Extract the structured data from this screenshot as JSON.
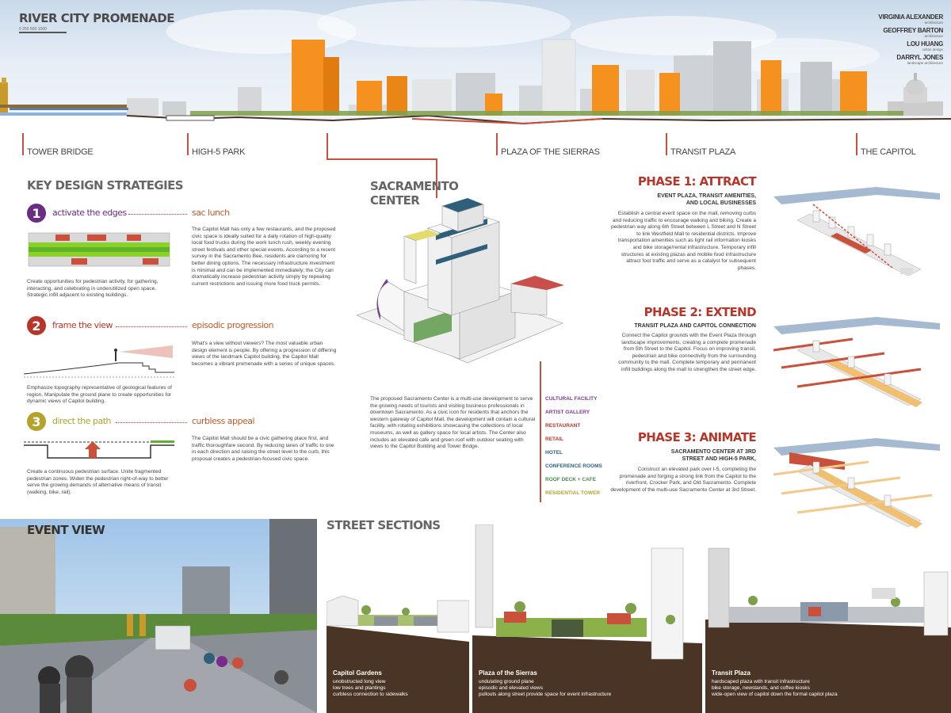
{
  "header": {
    "title": "RIVER CITY PROMENADE",
    "scale_text": "0    250    500          1000"
  },
  "credits": [
    {
      "name": "VIRGINIA ALEXANDER",
      "role": "architecture"
    },
    {
      "name": "GEOFFREY BARTON",
      "role": "architecture"
    },
    {
      "name": "LOU HUANG",
      "role": "urban design"
    },
    {
      "name": "DARRYL JONES",
      "role": "landscape architecture"
    }
  ],
  "locations": [
    "TOWER BRIDGE",
    "HIGH-5 PARK",
    "PLAZA OF THE SIERRAS",
    "TRANSIT PLAZA",
    "THE CAPITOL"
  ],
  "strategies": {
    "heading": "KEY DESIGN STRATEGIES",
    "items": [
      {
        "num": "1",
        "name": "activate the edges",
        "right_title": "sac lunch",
        "left_text": "Create opportunities for pedestrian activity, for gathering, interacting, and celebrating in underutilized open space.  Strategic infill adjacent to existing buildings.",
        "right_text": "The Capitol Mall has only a few restaurants, and the proposed civic space is ideally suited for a daily rotation of high-quality local food trucks during the work lunch rush, weekly evening street festivals and other special events. According to a recent survey in the Sacramento Bee, residents are clamoring for better dining options. The necessary infrastructure investment is minimal and can be implemented immediately; the City can dramatically increase pedestrian activity simply by repealing current restrictions and issuing more food truck permits.",
        "color": "#6b2c83"
      },
      {
        "num": "2",
        "name": "frame the view",
        "right_title": "episodic progression",
        "left_text": "Emphasize topography representative of geological features of region. Manipulate the ground plane to create opportunities for dynamic views of Capitol building.",
        "right_text": "What's a view without viewers? The most valuable urban design element is people. By offering a progression of differing views of the landmark Capitol building, the Capitol Mall becomes a vibrant promenade with a series of unique spaces.",
        "color": "#b8352a"
      },
      {
        "num": "3",
        "name": "direct the path",
        "right_title": "curbless appeal",
        "left_text": "Create a continuous pedestrian surface. Unite fragmented pedestrian zones. Widen the pedestrian right-of-way to better serve the growing demands of alternative means of transit (walking, bike, rail).",
        "right_text": "The Capitol Mall should be a civic gathering place first, and traffic thoroughfare second. By reducing lanes of traffic to one in each direction and raising the street level to the curb, this proposal creates a pedestrian-focused civic space.",
        "color": "#b4a22c"
      }
    ]
  },
  "center": {
    "heading_line1": "SACRAMENTO",
    "heading_line2": "CENTER",
    "description": "The proposed Sacramento Center is a multi-use development to serve the growing needs of tourists and visiting business professionals in downtown Sacramento. As a civic icon for residents that anchors the western gateway of Capitol Mall, the development will contain a cultural facility, with rotating exhibitions showcasing the collections of local museums, as well as gallery space for local artists. The Center also includes an elevated cafe and green roof with outdoor seating with views to the Capitol Building and Tower Bridge.",
    "legend": [
      {
        "label": "CULTURAL FACILITY",
        "color": "#7a3a8c"
      },
      {
        "label": "ARTIST GALLERY",
        "color": "#7a3a8c"
      },
      {
        "label": "RESTAURANT",
        "color": "#b8352a"
      },
      {
        "label": "RETAIL",
        "color": "#b8352a"
      },
      {
        "label": "HOTEL",
        "color": "#2f5f7a"
      },
      {
        "label": "CONFERENCE ROOMS",
        "color": "#2f5f7a"
      },
      {
        "label": "ROOF DECK + CAFE",
        "color": "#4a8a4a"
      },
      {
        "label": "RESIDENTIAL TOWER",
        "color": "#b4a22c"
      }
    ]
  },
  "phases": [
    {
      "title": "PHASE 1: ATTRACT",
      "subtitle_line1": "EVENT PLAZA, TRANSIT AMENITIES,",
      "subtitle_line2": "AND LOCAL BUSINESSES",
      "text": "Establish a central event space on the mall, removing curbs and reducing traffic to encourage walking and biking. Create a pedestrian way along 6th Street between L Street and N Street to link Westfield Mall to residential districts.  Improve transportation amenities such as light rail information kiosks and bike storage/rental infrastructure. Temporary infill structures at existing plazas and mobile food infrastructure attract foot traffic and serve as a catalyst for subsequent phases."
    },
    {
      "title": "PHASE 2: EXTEND",
      "subtitle_line1": "TRANSIT PLAZA AND CAPITOL CONNECTION",
      "subtitle_line2": "",
      "text": "Connect the Capitol grounds with the Event Plaza through landscape improvements, creating a complete promenade from 5th Street to the Capitol. Focus on improving transit, pedestrian and bike connectivity from the surrounding community to the mall. Complete temporary and permanent infill buildings along the mall to strengthen the street edge."
    },
    {
      "title": "PHASE 3: ANIMATE",
      "subtitle_line1": "SACRAMENTO CENTER AT 3RD",
      "subtitle_line2": "STREET AND HIGH-5 PARK,",
      "text": "Construct an elevated park over I-5, completing the promenade and forging a strong link from the Capitol to the riverfront, Crocker Park, and Old  Sacramento.  Complete development of the multi-use Sacramento Center at 3rd Street."
    }
  ],
  "event_view": {
    "heading": "EVENT VIEW"
  },
  "street_sections": {
    "heading": "STREET SECTIONS",
    "items": [
      {
        "title": "Capitol Gardens",
        "lines": [
          "unobstructed long view",
          "low trees and plantings",
          "curbless connection to sidewalks"
        ]
      },
      {
        "title": "Plaza of the Sierras",
        "lines": [
          "undulating ground plane",
          "episodic and elevated views",
          "pullouts along street provide space for event infrastructure"
        ]
      },
      {
        "title": "Transit Plaza",
        "lines": [
          "hardscaped plaza with transit infrastructure",
          "bike storage, newstands, and coffee kiosks",
          "wide-open view of capitol down the formal capitol plaza"
        ]
      }
    ]
  },
  "colors": {
    "accent_red": "#b8352a",
    "orange": "#f5911e",
    "purple": "#6b2c83",
    "olive": "#b4a22c",
    "soil": "#4a3426"
  }
}
